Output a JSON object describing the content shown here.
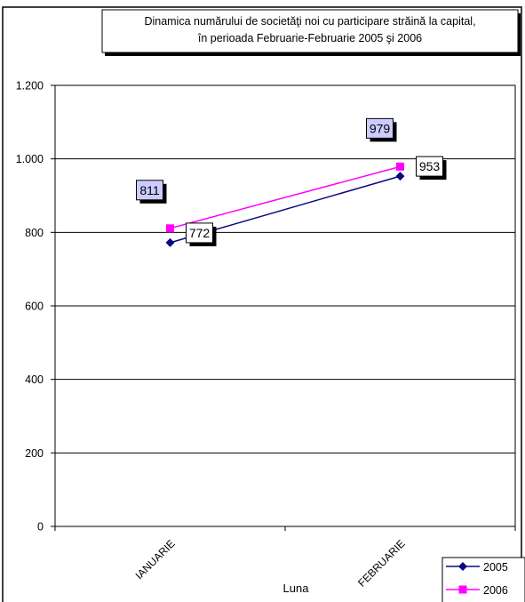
{
  "chart_data": {
    "type": "line",
    "title_lines": [
      "Dinamica numărului de societăţi noi cu participare străină la capital,",
      "în perioada Februarie-Februarie  2005 şi 2006"
    ],
    "xlabel": "Luna",
    "ylabel": "",
    "categories": [
      "IANUARIE",
      "FEBRUARIE"
    ],
    "ylim": [
      0,
      1200
    ],
    "yticks": [
      0,
      200,
      400,
      600,
      800,
      1000,
      1200
    ],
    "ytick_labels": [
      "0",
      "200",
      "400",
      "600",
      "800",
      "1.000",
      "1.200"
    ],
    "grid": true,
    "legend_position": "bottom-right",
    "series": [
      {
        "name": "2005",
        "values": [
          772,
          953
        ],
        "labels": [
          "772",
          "953"
        ],
        "color": "#0a0a80",
        "marker": "diamond"
      },
      {
        "name": "2006",
        "values": [
          811,
          979
        ],
        "labels": [
          "811",
          "979"
        ],
        "color": "#ff00ff",
        "marker": "square"
      }
    ],
    "label_fill": "#ccccff"
  }
}
